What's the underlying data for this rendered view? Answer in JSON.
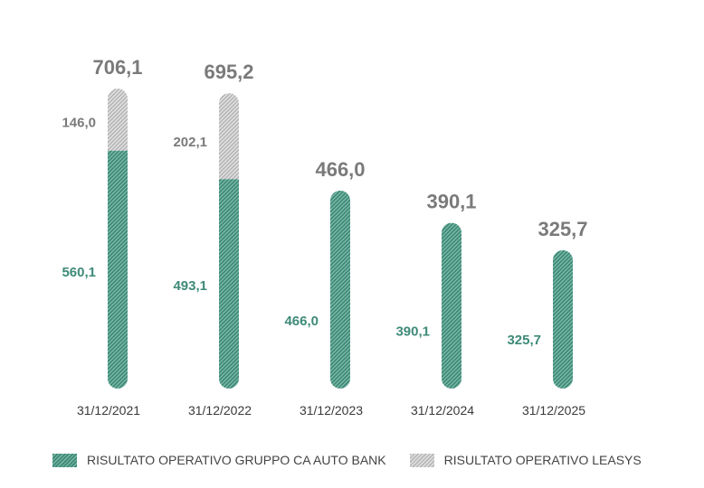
{
  "chart_data": {
    "type": "bar",
    "stacked": true,
    "categories": [
      "31/12/2021",
      "31/12/2022",
      "31/12/2023",
      "31/12/2024",
      "31/12/2025"
    ],
    "series": [
      {
        "name": "RISULTATO OPERATIVO GRUPPO CA AUTO BANK",
        "values": [
          560.1,
          493.1,
          466.0,
          390.1,
          325.7
        ],
        "labels": [
          "560,1",
          "493,1",
          "466,0",
          "390,1",
          "325,7"
        ],
        "color": "#3f8c79"
      },
      {
        "name": "RISULTATO OPERATIVO LEASYS",
        "values": [
          146.0,
          202.1,
          0,
          0,
          0
        ],
        "labels": [
          "146,0",
          "202,1",
          "",
          "",
          ""
        ],
        "color": "#c4c4c4"
      }
    ],
    "totals": [
      706.1,
      695.2,
      466.0,
      390.1,
      325.7
    ],
    "total_labels": [
      "706,1",
      "695,2",
      "466,0",
      "390,1",
      "325,7"
    ],
    "ylim": [
      0,
      720
    ],
    "grid": false,
    "legend_position": "bottom"
  }
}
